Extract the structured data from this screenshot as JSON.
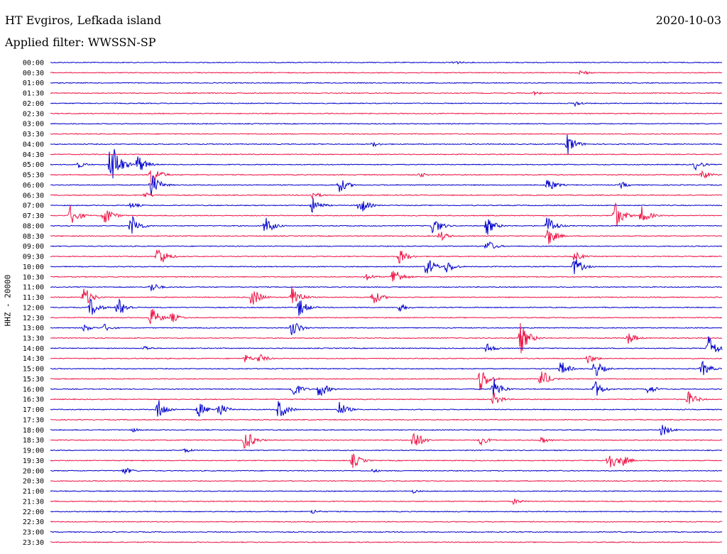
{
  "header": {
    "station": "HT Evgiros, Lefkada island",
    "date": "2020-10-03",
    "filter_label": "Applied filter:",
    "filter_value": "WWSSN-SP"
  },
  "colors": {
    "even_row": "#0000cc",
    "odd_row": "#ee1144"
  },
  "chart_data": {
    "type": "line",
    "title": "",
    "ylabel": "HHZ - 20000",
    "time_labels": [
      "00:00",
      "00:30",
      "01:00",
      "01:30",
      "02:00",
      "02:30",
      "03:00",
      "03:30",
      "04:00",
      "04:30",
      "05:00",
      "05:30",
      "06:00",
      "06:30",
      "07:00",
      "07:30",
      "08:00",
      "08:30",
      "09:00",
      "09:30",
      "10:00",
      "10:30",
      "11:00",
      "11:30",
      "12:00",
      "12:30",
      "13:00",
      "13:30",
      "14:00",
      "14:30",
      "15:00",
      "15:30",
      "16:00",
      "16:30",
      "17:00",
      "17:30",
      "18:00",
      "18:30",
      "19:00",
      "19:30",
      "20:00",
      "20:30",
      "21:00",
      "21:30",
      "22:00",
      "22:30",
      "23:00",
      "23:30"
    ],
    "row_duration_min": 30,
    "events": [
      [
        0,
        0.6,
        4
      ],
      [
        1,
        0.79,
        5
      ],
      [
        3,
        0.72,
        3
      ],
      [
        4,
        0.78,
        5
      ],
      [
        8,
        0.77,
        16
      ],
      [
        8,
        0.48,
        4
      ],
      [
        10,
        0.09,
        40
      ],
      [
        10,
        0.13,
        15
      ],
      [
        10,
        0.04,
        6
      ],
      [
        10,
        0.96,
        8
      ],
      [
        11,
        0.15,
        18
      ],
      [
        11,
        0.97,
        8
      ],
      [
        11,
        0.55,
        4
      ],
      [
        12,
        0.15,
        18
      ],
      [
        12,
        0.43,
        12
      ],
      [
        12,
        0.74,
        12
      ],
      [
        12,
        0.85,
        5
      ],
      [
        13,
        0.39,
        6
      ],
      [
        13,
        0.14,
        5
      ],
      [
        14,
        0.39,
        12
      ],
      [
        14,
        0.46,
        14
      ],
      [
        14,
        0.12,
        5
      ],
      [
        15,
        0.03,
        16
      ],
      [
        15,
        0.08,
        16
      ],
      [
        15,
        0.84,
        22
      ],
      [
        15,
        0.88,
        14
      ],
      [
        16,
        0.12,
        18
      ],
      [
        16,
        0.32,
        14
      ],
      [
        16,
        0.57,
        14
      ],
      [
        16,
        0.74,
        16
      ],
      [
        16,
        0.65,
        14
      ],
      [
        17,
        0.74,
        16
      ],
      [
        17,
        0.58,
        8
      ],
      [
        18,
        0.65,
        10
      ],
      [
        19,
        0.16,
        18
      ],
      [
        19,
        0.52,
        12
      ],
      [
        19,
        0.78,
        8
      ],
      [
        20,
        0.56,
        16
      ],
      [
        20,
        0.59,
        10
      ],
      [
        20,
        0.78,
        14
      ],
      [
        21,
        0.51,
        16
      ],
      [
        21,
        0.47,
        6
      ],
      [
        22,
        0.15,
        8
      ],
      [
        23,
        0.05,
        16
      ],
      [
        23,
        0.3,
        16
      ],
      [
        23,
        0.36,
        20
      ],
      [
        23,
        0.48,
        12
      ],
      [
        24,
        0.06,
        14
      ],
      [
        24,
        0.1,
        16
      ],
      [
        24,
        0.37,
        14
      ],
      [
        24,
        0.52,
        6
      ],
      [
        25,
        0.15,
        16
      ],
      [
        25,
        0.18,
        8
      ],
      [
        26,
        0.36,
        14
      ],
      [
        26,
        0.05,
        6
      ],
      [
        26,
        0.08,
        6
      ],
      [
        27,
        0.7,
        24
      ],
      [
        27,
        0.86,
        10
      ],
      [
        28,
        0.98,
        20
      ],
      [
        28,
        0.65,
        8
      ],
      [
        28,
        0.14,
        4
      ],
      [
        29,
        0.29,
        6
      ],
      [
        29,
        0.31,
        8
      ],
      [
        29,
        0.8,
        8
      ],
      [
        30,
        0.76,
        12
      ],
      [
        30,
        0.81,
        14
      ],
      [
        30,
        0.97,
        12
      ],
      [
        31,
        0.64,
        20
      ],
      [
        31,
        0.73,
        16
      ],
      [
        32,
        0.36,
        14
      ],
      [
        32,
        0.4,
        14
      ],
      [
        32,
        0.66,
        16
      ],
      [
        32,
        0.81,
        14
      ],
      [
        32,
        0.89,
        8
      ],
      [
        33,
        0.66,
        10
      ],
      [
        33,
        0.95,
        12
      ],
      [
        34,
        0.16,
        16
      ],
      [
        34,
        0.22,
        12
      ],
      [
        34,
        0.25,
        12
      ],
      [
        34,
        0.34,
        16
      ],
      [
        34,
        0.43,
        12
      ],
      [
        36,
        0.12,
        4
      ],
      [
        36,
        0.91,
        10
      ],
      [
        37,
        0.29,
        18
      ],
      [
        37,
        0.54,
        18
      ],
      [
        37,
        0.64,
        8
      ],
      [
        37,
        0.73,
        6
      ],
      [
        38,
        0.2,
        4
      ],
      [
        39,
        0.45,
        12
      ],
      [
        39,
        0.83,
        18
      ],
      [
        39,
        0.85,
        10
      ],
      [
        40,
        0.11,
        6
      ],
      [
        40,
        0.48,
        3
      ],
      [
        42,
        0.54,
        3
      ],
      [
        43,
        0.69,
        5
      ],
      [
        44,
        0.39,
        4
      ]
    ]
  }
}
